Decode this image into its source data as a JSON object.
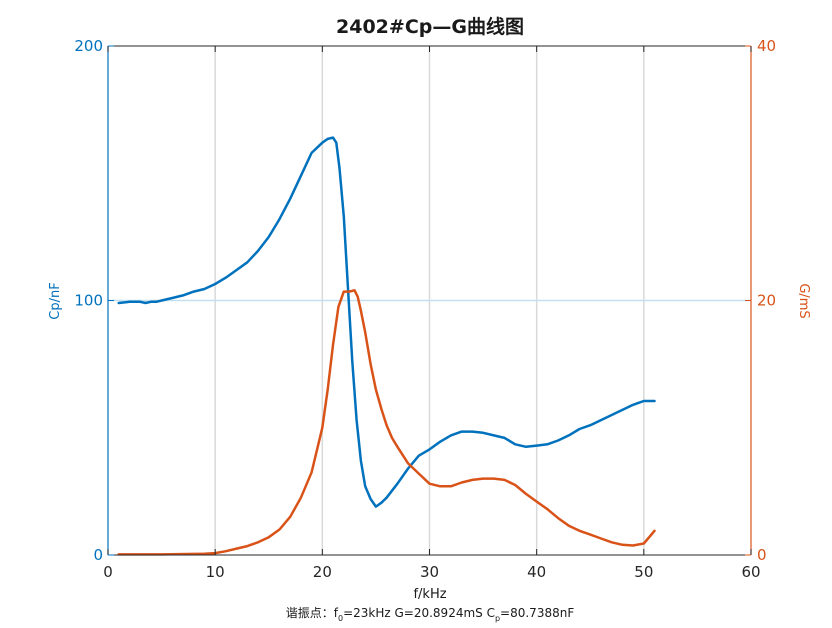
{
  "chart_data": {
    "type": "line",
    "title": "2402#Cp—G曲线图",
    "xlabel": "f/kHz",
    "ylabel_left": "Cp/nF",
    "ylabel_right": "G/mS",
    "xlim": [
      0,
      60
    ],
    "ylim_left": [
      0,
      200
    ],
    "ylim_right": [
      0,
      40
    ],
    "x_ticks": [
      "0",
      "10",
      "20",
      "30",
      "40",
      "50",
      "60"
    ],
    "y_left_ticks": [
      "0",
      "100",
      "200"
    ],
    "y_right_ticks": [
      "0",
      "20",
      "40"
    ],
    "grid": "vertical at x = 10, 20, 30, 40, 50; horizontal at left y = 100",
    "colors": {
      "cp": "#0072BD",
      "g": "#D95319",
      "grid": "#d9d9d9",
      "grid_h": "#c5e0f0"
    },
    "series": [
      {
        "axis": "left",
        "color": "#0072BD",
        "x": [
          1,
          2,
          3,
          3.5,
          4,
          4.5,
          5,
          6,
          7,
          8,
          9,
          10,
          11,
          12,
          13,
          14,
          15,
          16,
          17,
          18,
          19,
          20,
          20.5,
          21,
          21.3,
          21.6,
          22,
          22.4,
          22.8,
          23.2,
          23.6,
          24,
          24.5,
          25,
          25.5,
          26,
          27,
          28,
          29,
          30,
          31,
          32,
          33,
          34,
          35,
          36,
          37,
          38,
          39,
          40,
          41,
          42,
          43,
          44,
          45,
          46,
          47,
          48,
          49,
          50,
          51
        ],
        "y": [
          99,
          99.5,
          99.5,
          99,
          99.5,
          99.5,
          100,
          101,
          102,
          103.5,
          104.5,
          106.5,
          109,
          112,
          115,
          119.5,
          125,
          132,
          140,
          149,
          158,
          162,
          163.5,
          164,
          162,
          152,
          133,
          104,
          76,
          53,
          37,
          27,
          22,
          19,
          20.5,
          22.5,
          28,
          34,
          39,
          41.5,
          44.5,
          47,
          48.5,
          48.5,
          48,
          47,
          46,
          43.5,
          42.5,
          43,
          43.5,
          45,
          47,
          49.5,
          51,
          53,
          55,
          57,
          59,
          60.5,
          60.5
        ]
      },
      {
        "axis": "right",
        "color": "#D95319",
        "x": [
          1,
          5,
          9,
          10,
          11,
          12,
          13,
          14,
          15,
          16,
          17,
          18,
          19,
          20,
          20.5,
          21,
          21.5,
          22,
          22.5,
          23,
          23.3,
          23.6,
          24,
          24.5,
          25,
          25.5,
          26,
          26.5,
          27,
          28,
          29,
          30,
          31,
          32,
          33,
          34,
          35,
          36,
          37,
          38,
          39,
          40,
          41,
          42,
          43,
          44,
          45,
          46,
          47,
          48,
          49,
          50,
          50.5,
          51
        ],
        "y": [
          0.05,
          0.05,
          0.1,
          0.15,
          0.3,
          0.5,
          0.7,
          1.0,
          1.4,
          2.0,
          3.0,
          4.5,
          6.5,
          10,
          13,
          16.5,
          19.5,
          20.7,
          20.7,
          20.8,
          20.3,
          19.2,
          17.5,
          15,
          13,
          11.5,
          10.2,
          9.2,
          8.5,
          7.2,
          6.4,
          5.6,
          5.4,
          5.4,
          5.7,
          5.9,
          6.0,
          6.0,
          5.9,
          5.5,
          4.8,
          4.2,
          3.6,
          2.9,
          2.3,
          1.9,
          1.6,
          1.3,
          1.0,
          0.8,
          0.75,
          0.9,
          1.4,
          1.9
        ]
      }
    ]
  },
  "footer": {
    "prefix": "谐振点：f",
    "f_sub": "0",
    "f_val": "=23kHz  G=20.8924mS  C",
    "c_sub": "p",
    "c_val": "=80.7388nF"
  }
}
